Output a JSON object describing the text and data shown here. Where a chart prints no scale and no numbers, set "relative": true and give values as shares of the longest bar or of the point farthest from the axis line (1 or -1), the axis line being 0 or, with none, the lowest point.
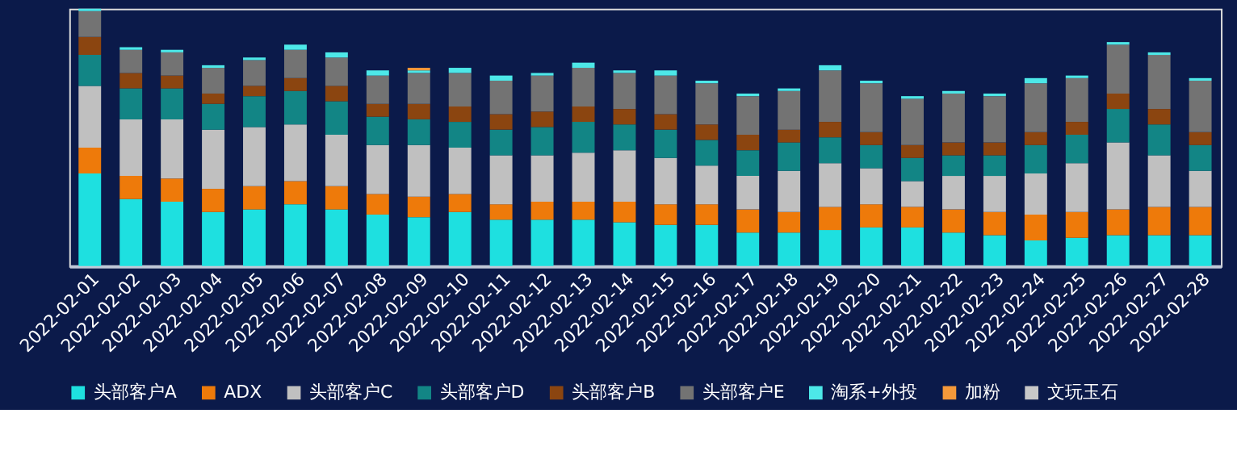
{
  "chart_data": {
    "type": "bar",
    "stacked": true,
    "relative": true,
    "legend": "bottom",
    "grid": false,
    "categories": [
      "2022-02-01",
      "2022-02-02",
      "2022-02-03",
      "2022-02-04",
      "2022-02-05",
      "2022-02-06",
      "2022-02-07",
      "2022-02-08",
      "2022-02-09",
      "2022-02-10",
      "2022-02-11",
      "2022-02-12",
      "2022-02-13",
      "2022-02-14",
      "2022-02-15",
      "2022-02-16",
      "2022-02-17",
      "2022-02-18",
      "2022-02-19",
      "2022-02-20",
      "2022-02-21",
      "2022-02-22",
      "2022-02-23",
      "2022-02-24",
      "2022-02-25",
      "2022-02-26",
      "2022-02-27",
      "2022-02-28"
    ],
    "series": [
      {
        "name": "头部客户A",
        "color": "#1ee0e0",
        "values": [
          0.36,
          0.26,
          0.25,
          0.21,
          0.22,
          0.24,
          0.22,
          0.2,
          0.19,
          0.21,
          0.18,
          0.18,
          0.18,
          0.17,
          0.16,
          0.16,
          0.13,
          0.13,
          0.14,
          0.15,
          0.15,
          0.13,
          0.12,
          0.1,
          0.11,
          0.12,
          0.12,
          0.12
        ]
      },
      {
        "name": "ADX",
        "color": "#ee7a0a",
        "values": [
          0.1,
          0.09,
          0.09,
          0.09,
          0.09,
          0.09,
          0.09,
          0.08,
          0.08,
          0.07,
          0.06,
          0.07,
          0.07,
          0.08,
          0.08,
          0.08,
          0.09,
          0.08,
          0.09,
          0.09,
          0.08,
          0.09,
          0.09,
          0.1,
          0.1,
          0.1,
          0.11,
          0.11
        ]
      },
      {
        "name": "头部客户C",
        "color": "#c0c0c0",
        "values": [
          0.24,
          0.22,
          0.23,
          0.23,
          0.23,
          0.22,
          0.2,
          0.19,
          0.2,
          0.18,
          0.19,
          0.18,
          0.19,
          0.2,
          0.18,
          0.15,
          0.13,
          0.16,
          0.17,
          0.14,
          0.1,
          0.13,
          0.14,
          0.16,
          0.19,
          0.26,
          0.2,
          0.14
        ]
      },
      {
        "name": "头部客户D",
        "color": "#128585",
        "values": [
          0.12,
          0.12,
          0.12,
          0.1,
          0.12,
          0.13,
          0.13,
          0.11,
          0.1,
          0.1,
          0.1,
          0.11,
          0.12,
          0.1,
          0.11,
          0.1,
          0.1,
          0.11,
          0.1,
          0.09,
          0.09,
          0.08,
          0.08,
          0.11,
          0.11,
          0.13,
          0.12,
          0.1
        ]
      },
      {
        "name": "头部客户B",
        "color": "#8b4510",
        "values": [
          0.07,
          0.06,
          0.05,
          0.04,
          0.04,
          0.05,
          0.06,
          0.05,
          0.06,
          0.06,
          0.06,
          0.06,
          0.06,
          0.06,
          0.06,
          0.06,
          0.06,
          0.05,
          0.06,
          0.05,
          0.05,
          0.05,
          0.05,
          0.05,
          0.05,
          0.06,
          0.06,
          0.05
        ]
      },
      {
        "name": "头部客户E",
        "color": "#737373",
        "values": [
          0.1,
          0.09,
          0.09,
          0.1,
          0.1,
          0.11,
          0.11,
          0.11,
          0.12,
          0.13,
          0.13,
          0.14,
          0.15,
          0.14,
          0.15,
          0.16,
          0.15,
          0.15,
          0.2,
          0.19,
          0.18,
          0.19,
          0.18,
          0.19,
          0.17,
          0.19,
          0.21,
          0.2
        ]
      },
      {
        "name": "淘系+外投",
        "color": "#4de8e8",
        "values": [
          0.01,
          0.01,
          0.01,
          0.01,
          0.01,
          0.02,
          0.02,
          0.02,
          0.01,
          0.02,
          0.02,
          0.01,
          0.02,
          0.01,
          0.02,
          0.01,
          0.01,
          0.01,
          0.02,
          0.01,
          0.01,
          0.01,
          0.01,
          0.02,
          0.01,
          0.01,
          0.01,
          0.01
        ]
      },
      {
        "name": "加粉",
        "color": "#f5993a",
        "values": [
          null,
          null,
          null,
          null,
          null,
          null,
          null,
          null,
          0.01,
          null,
          null,
          null,
          null,
          null,
          null,
          null,
          null,
          null,
          null,
          null,
          null,
          null,
          null,
          null,
          null,
          null,
          null,
          null
        ]
      },
      {
        "name": "文玩玉石",
        "color": "#c8c8c8",
        "values": [
          null,
          null,
          null,
          null,
          null,
          null,
          null,
          null,
          null,
          null,
          null,
          null,
          null,
          null,
          null,
          null,
          null,
          null,
          null,
          null,
          null,
          null,
          null,
          null,
          null,
          null,
          null,
          null
        ]
      }
    ]
  }
}
